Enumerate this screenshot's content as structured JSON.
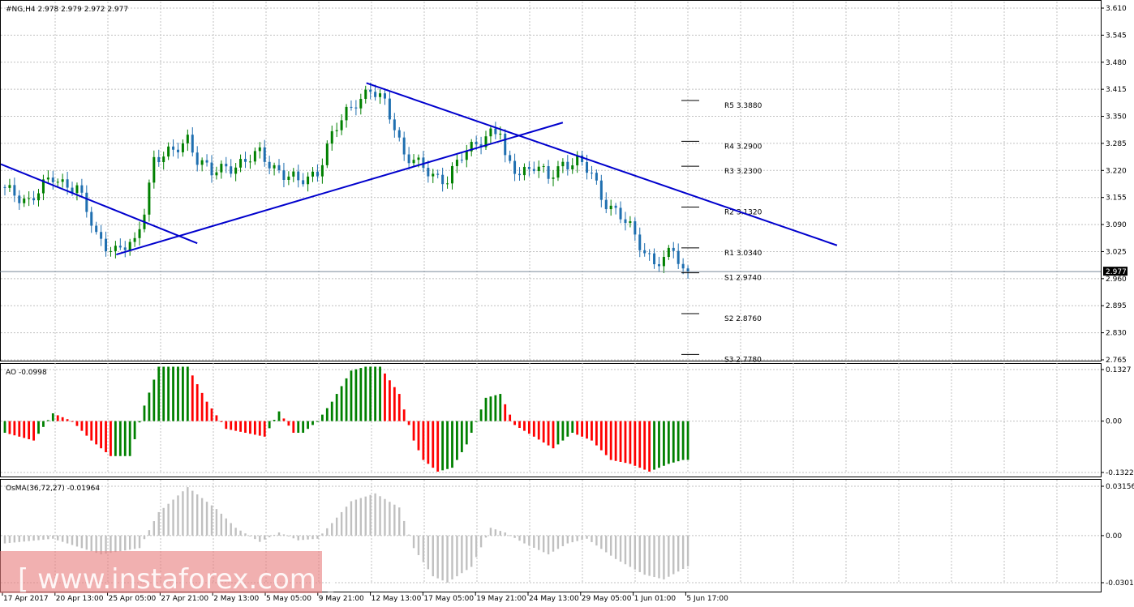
{
  "window": {
    "symbol_header": "#NG,H4  2.978 2.979 2.972 2.977"
  },
  "colors": {
    "bull": "#008000",
    "bear": "#ff0000",
    "trendline": "#0000cd",
    "grid": "#c0c0c0",
    "osma": "#c0c0c0",
    "price_line": "#778899"
  },
  "chart_data": [
    {
      "type": "candlestick",
      "title": "#NG,H4  2.978 2.979 2.972 2.977",
      "ylim": [
        2.765,
        3.61
      ],
      "yticks": [
        "3.610",
        "3.545",
        "3.480",
        "3.415",
        "3.350",
        "3.285",
        "3.220",
        "3.155",
        "3.090",
        "3.025",
        "2.960",
        "2.895",
        "2.830",
        "2.765"
      ],
      "xticks": [
        "17 Apr 2017",
        "20 Apr 13:00",
        "25 Apr 05:00",
        "27 Apr 21:00",
        "2 May 13:00",
        "5 May 05:00",
        "9 May 21:00",
        "12 May 13:00",
        "17 May 05:00",
        "19 May 21:00",
        "24 May 13:00",
        "29 May 05:00",
        "1 Jun 01:00",
        "5 Jun 17:00"
      ],
      "bar_count": 143,
      "close_path": [
        [
          0,
          3.17
        ],
        [
          5,
          3.15
        ],
        [
          10,
          3.2
        ],
        [
          15,
          3.18
        ],
        [
          19,
          3.06
        ],
        [
          23,
          3.03
        ],
        [
          27,
          3.04
        ],
        [
          29,
          3.13
        ],
        [
          31,
          3.25
        ],
        [
          35,
          3.26
        ],
        [
          38,
          3.3
        ],
        [
          40,
          3.25
        ],
        [
          43,
          3.21
        ],
        [
          46,
          3.23
        ],
        [
          50,
          3.24
        ],
        [
          53,
          3.26
        ],
        [
          56,
          3.23
        ],
        [
          58,
          3.21
        ],
        [
          61,
          3.19
        ],
        [
          65,
          3.22
        ],
        [
          68,
          3.3
        ],
        [
          71,
          3.36
        ],
        [
          73,
          3.39
        ],
        [
          76,
          3.41
        ],
        [
          79,
          3.38
        ],
        [
          81,
          3.33
        ],
        [
          83,
          3.26
        ],
        [
          86,
          3.23
        ],
        [
          89,
          3.21
        ],
        [
          92,
          3.2
        ],
        [
          95,
          3.25
        ],
        [
          98,
          3.29
        ],
        [
          101,
          3.31
        ],
        [
          103,
          3.31
        ],
        [
          104,
          3.24
        ],
        [
          107,
          3.22
        ],
        [
          110,
          3.23
        ],
        [
          113,
          3.2
        ],
        [
          116,
          3.24
        ],
        [
          119,
          3.24
        ],
        [
          122,
          3.21
        ],
        [
          124,
          3.16
        ],
        [
          127,
          3.12
        ],
        [
          130,
          3.08
        ],
        [
          131,
          3.06
        ],
        [
          133,
          3.03
        ],
        [
          135,
          3.0
        ],
        [
          137,
          3.0
        ],
        [
          139,
          3.03
        ],
        [
          141,
          2.98
        ],
        [
          142,
          2.977
        ]
      ],
      "current_price": "2.977",
      "pivot_levels": [
        {
          "label": "R5 3.3880",
          "value": 3.388
        },
        {
          "label": "R4 3.2900",
          "value": 3.29
        },
        {
          "label": "R3 3.2300",
          "value": 3.23
        },
        {
          "label": "R2 3.1320",
          "value": 3.132
        },
        {
          "label": "R1 3.0340",
          "value": 3.034
        },
        {
          "label": "S1 2.9740",
          "value": 2.974
        },
        {
          "label": "S2 2.8760",
          "value": 2.876
        },
        {
          "label": "S3 2.7780",
          "value": 2.778
        }
      ],
      "trendlines": [
        {
          "from": [
            0,
            3.235
          ],
          "to": [
            40,
            3.045
          ]
        },
        {
          "from": [
            24,
            3.018
          ],
          "to": [
            116,
            3.335
          ]
        },
        {
          "from": [
            76,
            3.43
          ],
          "to": [
            173,
            3.04
          ]
        }
      ],
      "grid": true
    },
    {
      "type": "histogram",
      "title": "AO -0.0998",
      "ylim": [
        -0.1322,
        0.1327
      ],
      "yticks": [
        "0.1327",
        "0.00",
        "-0.1322"
      ],
      "keys": [
        [
          0,
          -0.03
        ],
        [
          6,
          -0.05
        ],
        [
          10,
          0.02
        ],
        [
          14,
          0.0
        ],
        [
          18,
          -0.05
        ],
        [
          22,
          -0.09
        ],
        [
          26,
          -0.09
        ],
        [
          29,
          0.04
        ],
        [
          32,
          0.14
        ],
        [
          36,
          0.14
        ],
        [
          38,
          0.14
        ],
        [
          42,
          0.05
        ],
        [
          46,
          -0.02
        ],
        [
          50,
          -0.03
        ],
        [
          54,
          -0.04
        ],
        [
          57,
          0.025
        ],
        [
          60,
          -0.03
        ],
        [
          62,
          -0.03
        ],
        [
          65,
          0.0
        ],
        [
          68,
          0.05
        ],
        [
          72,
          0.13
        ],
        [
          75,
          0.14
        ],
        [
          78,
          0.14
        ],
        [
          82,
          0.07
        ],
        [
          85,
          -0.05
        ],
        [
          87,
          -0.1
        ],
        [
          90,
          -0.13
        ],
        [
          93,
          -0.12
        ],
        [
          96,
          -0.06
        ],
        [
          100,
          0.06
        ],
        [
          103,
          0.07
        ],
        [
          106,
          -0.01
        ],
        [
          110,
          -0.04
        ],
        [
          114,
          -0.07
        ],
        [
          118,
          -0.03
        ],
        [
          122,
          -0.05
        ],
        [
          126,
          -0.1
        ],
        [
          130,
          -0.11
        ],
        [
          134,
          -0.13
        ],
        [
          138,
          -0.11
        ],
        [
          141,
          -0.1
        ],
        [
          142,
          -0.0998
        ]
      ],
      "grid": true
    },
    {
      "type": "histogram",
      "title": "OsMA(36,72,27) -0.01964",
      "ylim": [
        -0.03011,
        0.03156
      ],
      "yticks": [
        "0.03156",
        "0.00",
        "-0.03011"
      ],
      "keys": [
        [
          0,
          -0.005
        ],
        [
          10,
          -0.002
        ],
        [
          20,
          -0.012
        ],
        [
          28,
          -0.008
        ],
        [
          32,
          0.015
        ],
        [
          38,
          0.031
        ],
        [
          44,
          0.017
        ],
        [
          48,
          0.005
        ],
        [
          53,
          -0.004
        ],
        [
          57,
          0.002
        ],
        [
          61,
          -0.003
        ],
        [
          65,
          -0.002
        ],
        [
          68,
          0.008
        ],
        [
          72,
          0.022
        ],
        [
          77,
          0.027
        ],
        [
          82,
          0.018
        ],
        [
          85,
          -0.008
        ],
        [
          89,
          -0.026
        ],
        [
          92,
          -0.03
        ],
        [
          97,
          -0.02
        ],
        [
          101,
          0.005
        ],
        [
          104,
          0.002
        ],
        [
          108,
          -0.005
        ],
        [
          113,
          -0.012
        ],
        [
          117,
          -0.005
        ],
        [
          121,
          -0.002
        ],
        [
          127,
          -0.015
        ],
        [
          133,
          -0.025
        ],
        [
          137,
          -0.028
        ],
        [
          142,
          -0.01964
        ]
      ],
      "grid": true
    }
  ],
  "watermark": {
    "text": "[ www.instaforex.com ]"
  }
}
